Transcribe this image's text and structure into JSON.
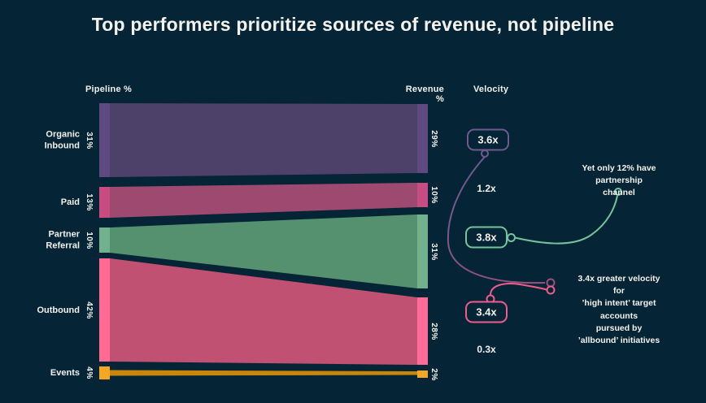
{
  "title": "Top performers prioritize sources of revenue, not pipeline",
  "columns": {
    "pipeline_header": "Pipeline %",
    "revenue_header": "Revenue %",
    "velocity_header": "Velocity"
  },
  "colors": {
    "background": "#052536",
    "text": "#F4F2EC"
  },
  "rows": [
    {
      "label": "Organic\nInbound",
      "slug": "organic-inbound",
      "pipeline_pct": "31%",
      "revenue_pct": "29%",
      "velocity": "3.6x",
      "velocity_boxed": true,
      "node_color": "#5E4A80",
      "flow_color": "#4E4169",
      "accent_color": "#6E5A8E"
    },
    {
      "label": "Paid",
      "slug": "paid",
      "pipeline_pct": "13%",
      "revenue_pct": "10%",
      "velocity": "1.2x",
      "velocity_boxed": false,
      "node_color": "#C84B82",
      "flow_color": "#9E4A70",
      "accent_color": "#C84B82"
    },
    {
      "label": "Partner\nReferral",
      "slug": "partner-referral",
      "pipeline_pct": "10%",
      "revenue_pct": "31%",
      "velocity": "3.8x",
      "velocity_boxed": true,
      "node_color": "#72B18E",
      "flow_color": "#55916F",
      "accent_color": "#74C39A"
    },
    {
      "label": "Outbound",
      "slug": "outbound",
      "pipeline_pct": "42%",
      "revenue_pct": "28%",
      "velocity": "3.4x",
      "velocity_boxed": true,
      "node_color": "#FF6B94",
      "flow_color": "#C05172",
      "accent_color": "#EF5C8B"
    },
    {
      "label": "Events",
      "slug": "events",
      "pipeline_pct": "4%",
      "revenue_pct": "2%",
      "velocity": "0.3x",
      "velocity_boxed": false,
      "node_color": "#F5A623",
      "flow_color": "#C8860D",
      "accent_color": "#F5A623"
    }
  ],
  "annotations": [
    {
      "text": "Yet only 12% have partnership\nchannel",
      "color": "#74C39A"
    },
    {
      "text": "3.4x greater velocity for\n’high intent’ target accounts\npursued by ’allbound’ initiatives",
      "color": "#EF5C8B"
    }
  ],
  "chart_data": {
    "type": "sankey",
    "title": "Top performers prioritize sources of revenue, not pipeline",
    "categories": [
      "Organic Inbound",
      "Paid",
      "Partner Referral",
      "Outbound",
      "Events"
    ],
    "series": [
      {
        "name": "Pipeline %",
        "values": [
          31,
          13,
          10,
          42,
          4
        ]
      },
      {
        "name": "Revenue %",
        "values": [
          29,
          10,
          31,
          28,
          2
        ]
      },
      {
        "name": "Velocity",
        "values": [
          "3.6x",
          "1.2x",
          "3.8x",
          "3.4x",
          "0.3x"
        ]
      }
    ],
    "highlighted_velocities": [
      "3.6x",
      "3.8x",
      "3.4x"
    ],
    "annotations": [
      "Yet only 12% have partnership channel",
      "3.4x greater velocity for 'high intent' target accounts pursued by 'allbound' initiatives"
    ],
    "legend_position": "none",
    "grid": false
  }
}
